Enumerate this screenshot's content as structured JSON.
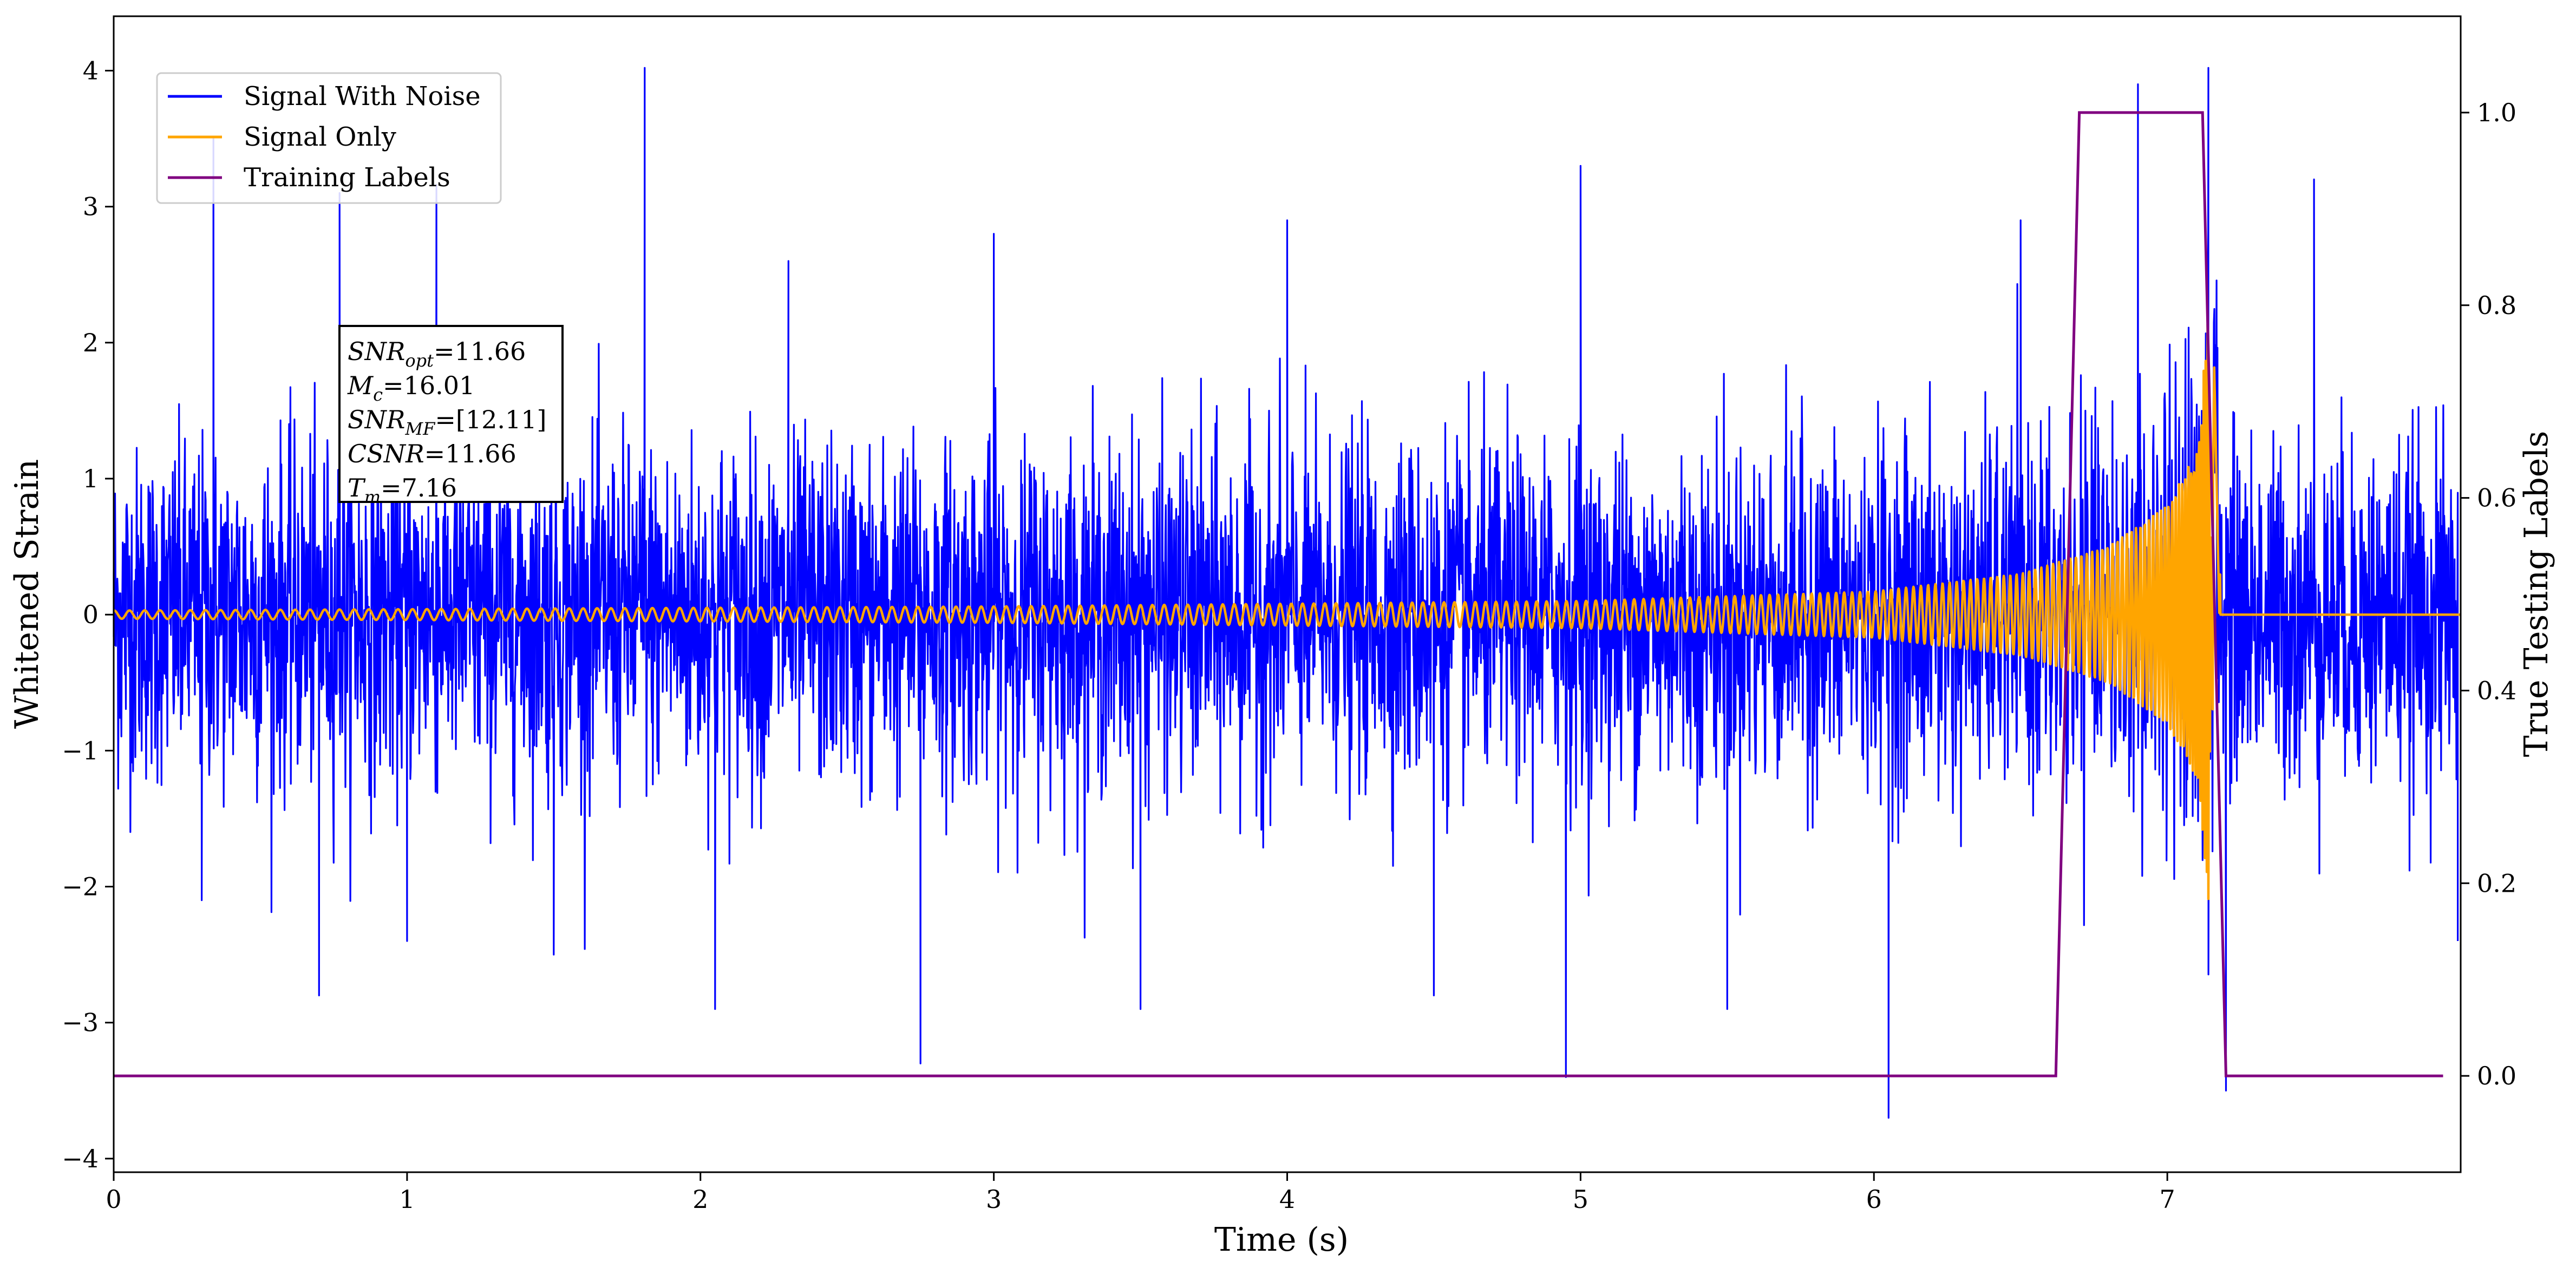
{
  "chart_data": {
    "type": "line",
    "title": "",
    "xlabel": "Time (s)",
    "ylabel": "Whitened Strain",
    "ylabel_right": "True Testing Labels",
    "xlim": [
      0,
      8
    ],
    "ylim": [
      -4.1,
      4.4
    ],
    "ylim_right": [
      -0.1,
      1.1
    ],
    "x_ticks": [
      0,
      1,
      2,
      3,
      4,
      5,
      6,
      7
    ],
    "x_tick_labels": [
      "0",
      "1",
      "2",
      "3",
      "4",
      "5",
      "6",
      "7"
    ],
    "y_ticks": [
      -4,
      -3,
      -2,
      -1,
      0,
      1,
      2,
      3,
      4
    ],
    "y_tick_labels": [
      "−4",
      "−3",
      "−2",
      "−1",
      "0",
      "1",
      "2",
      "3",
      "4"
    ],
    "y_ticks_right": [
      0.0,
      0.2,
      0.4,
      0.6,
      0.8,
      1.0
    ],
    "y_tick_labels_right": [
      "0.0",
      "0.2",
      "0.4",
      "0.6",
      "0.8",
      "1.0"
    ],
    "grid": false,
    "legend_position": "top-left",
    "series": [
      {
        "name": "Signal With Noise",
        "color": "#0000ff",
        "axis": "left",
        "x": [
          0,
          0.3,
          0.34,
          0.7,
          0.77,
          1.0,
          1.1,
          1.5,
          1.81,
          2.05,
          2.3,
          2.75,
          3.0,
          3.5,
          4.0,
          4.5,
          4.95,
          5.0,
          5.5,
          6.05,
          6.5,
          6.9,
          7.14,
          7.2,
          7.5,
          7.99
        ],
        "values": [
          0.3,
          -2.1,
          3.5,
          -2.8,
          3.1,
          -2.4,
          3.16,
          -2.5,
          4.02,
          -2.9,
          2.6,
          -3.3,
          2.8,
          -2.9,
          2.9,
          -2.8,
          -3.4,
          3.3,
          -2.9,
          -3.7,
          2.9,
          3.9,
          4.02,
          -3.5,
          3.2,
          -2.4
        ]
      },
      {
        "name": "Signal Only",
        "color": "#ffa500",
        "axis": "left",
        "x": [
          0.0,
          1.0,
          2.0,
          3.0,
          4.0,
          5.0,
          6.0,
          6.5,
          6.8,
          7.0,
          7.1,
          7.14,
          7.16,
          7.18,
          7.2,
          8.0
        ],
        "values": [
          0.03,
          0.04,
          0.05,
          0.06,
          0.08,
          0.1,
          0.17,
          0.3,
          0.5,
          0.8,
          1.2,
          2.2,
          -1.85,
          0.3,
          0.0,
          0.0
        ]
      },
      {
        "name": "Training Labels",
        "color": "#800080",
        "axis": "right",
        "x": [
          0.0,
          6.62,
          6.7,
          7.12,
          7.2,
          7.94
        ],
        "values": [
          0.0,
          0.0,
          1.0,
          1.0,
          0.0,
          0.0
        ]
      }
    ],
    "annotation": {
      "lines": [
        {
          "main": "SNR",
          "sub": "opt",
          "value": "=11.66"
        },
        {
          "main": "M",
          "sub": "c",
          "value": "=16.01"
        },
        {
          "main": "SNR",
          "sub": "MF",
          "value": "=[12.11]"
        },
        {
          "main": "CSNR",
          "sub": "",
          "value": "=11.66"
        },
        {
          "main": "T",
          "sub": "m",
          "value": "=7.16"
        }
      ]
    }
  }
}
